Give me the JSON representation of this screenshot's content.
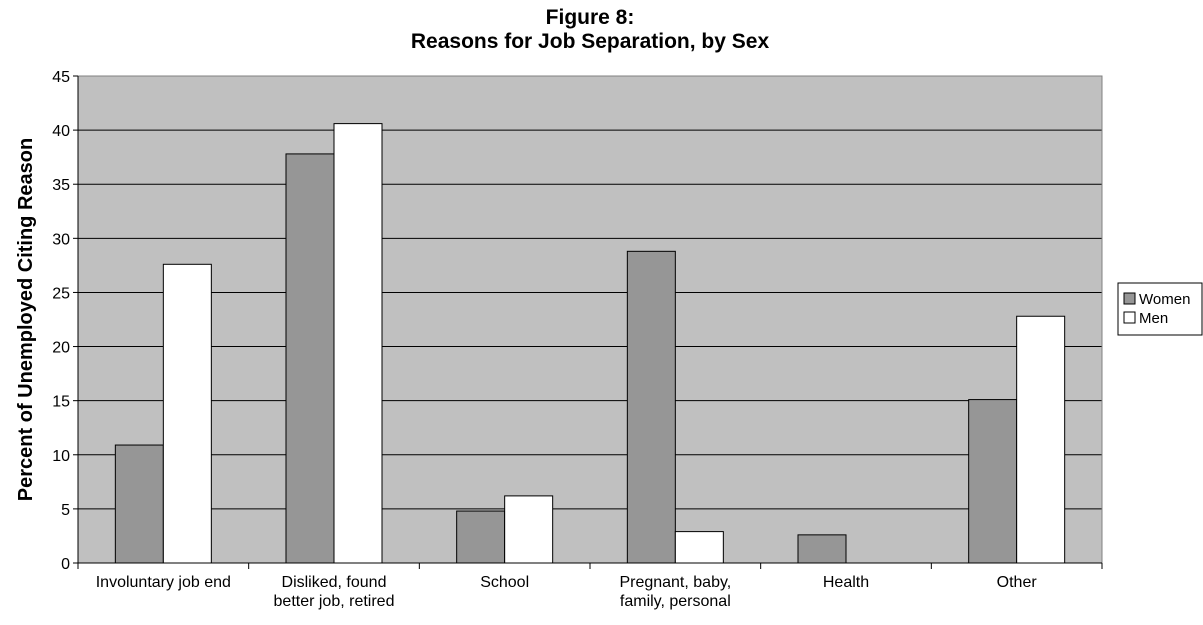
{
  "chart_data": {
    "type": "bar",
    "title_line1": "Figure 8:",
    "title_line2": "Reasons for Job Separation, by Sex",
    "xlabel": "",
    "ylabel": "Percent of Unemployed Citing Reason",
    "ylim": [
      0,
      45
    ],
    "yticks": [
      0,
      5,
      10,
      15,
      20,
      25,
      30,
      35,
      40,
      45
    ],
    "grid": true,
    "legend_position": "right",
    "categories": [
      [
        "Involuntary job end"
      ],
      [
        "Disliked, found",
        "better job, retired"
      ],
      [
        "School"
      ],
      [
        "Pregnant, baby,",
        "family, personal"
      ],
      [
        "Health"
      ],
      [
        "Other"
      ]
    ],
    "series": [
      {
        "name": "Women",
        "color": "#969696",
        "values": [
          10.9,
          37.8,
          4.8,
          28.8,
          2.6,
          15.1
        ]
      },
      {
        "name": "Men",
        "color": "#ffffff",
        "values": [
          27.6,
          40.6,
          6.2,
          2.9,
          0,
          22.8
        ]
      }
    ],
    "plot_background": "#c0c0c0"
  }
}
